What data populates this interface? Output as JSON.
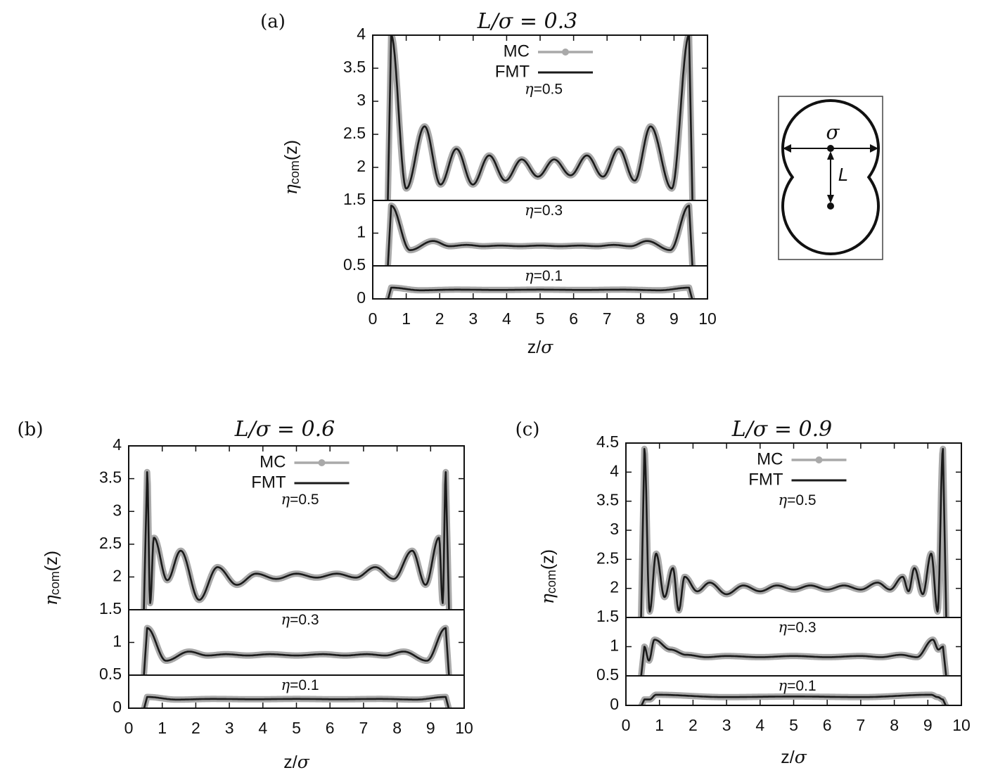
{
  "colors": {
    "mc": "#a9a9a9",
    "fmt": "#1a1a1a",
    "axis": "#111111"
  },
  "schematic": {
    "sigma_label": "σ",
    "length_label": "L"
  },
  "chart_data": [
    {
      "panel_label": "(a)",
      "type": "line",
      "title": "L/σ = 0.3",
      "xlabel": "z/σ",
      "ylabel": "η_com(z)",
      "xlim": [
        0,
        10
      ],
      "xticks": [
        "0",
        "1",
        "2",
        "3",
        "4",
        "5",
        "6",
        "7",
        "8",
        "9",
        "10"
      ],
      "grid": false,
      "legend": {
        "placement": "top-center",
        "entries": [
          "MC",
          "FMT"
        ]
      },
      "subplots": [
        {
          "label": "η=0.5",
          "ylim": [
            1.5,
            4
          ],
          "yticks": [
            "1.5",
            "2",
            "2.5",
            "3",
            "3.5",
            "4"
          ],
          "wall": 0.45,
          "contact": 4.0,
          "min1": 1.68,
          "peaks": [
            [
              1.55,
              2.62
            ],
            [
              2.5,
              2.28
            ],
            [
              3.48,
              2.18
            ],
            [
              4.45,
              2.12
            ],
            [
              5.42,
              2.12
            ],
            [
              6.4,
              2.18
            ],
            [
              7.35,
              2.28
            ],
            [
              8.3,
              2.62
            ]
          ],
          "troughs": [
            1.74,
            1.74,
            1.8,
            1.86,
            1.88,
            1.86,
            1.8,
            1.74,
            1.68
          ]
        },
        {
          "label": "η=0.3",
          "ylim": [
            0.5,
            1.5
          ],
          "yticks": [
            "0.5",
            "1"
          ],
          "wall": 0.45,
          "contact": 1.42,
          "min1": 0.74,
          "peaks": [
            [
              1.8,
              0.88
            ],
            [
              2.8,
              0.82
            ],
            [
              3.8,
              0.81
            ],
            [
              5.0,
              0.81
            ],
            [
              6.2,
              0.81
            ],
            [
              7.2,
              0.82
            ],
            [
              8.2,
              0.88
            ]
          ],
          "troughs": [
            0.8,
            0.8,
            0.8,
            0.8,
            0.8,
            0.8,
            0.8,
            0.74
          ]
        },
        {
          "label": "η=0.1",
          "ylim": [
            0,
            0.5
          ],
          "yticks": [
            "0"
          ],
          "wall": 0.45,
          "contact": 0.17,
          "min1": 0.13,
          "peaks": [
            [
              2.5,
              0.14
            ],
            [
              5.0,
              0.14
            ],
            [
              7.5,
              0.14
            ]
          ],
          "troughs": [
            0.135,
            0.135,
            0.135,
            0.13
          ]
        }
      ]
    },
    {
      "panel_label": "(b)",
      "type": "line",
      "title": "L/σ = 0.6",
      "xlabel": "z/σ",
      "ylabel": "η_com(z)",
      "xlim": [
        0,
        10
      ],
      "xticks": [
        "0",
        "1",
        "2",
        "3",
        "4",
        "5",
        "6",
        "7",
        "8",
        "9",
        "10"
      ],
      "grid": false,
      "legend": {
        "placement": "top-center",
        "entries": [
          "MC",
          "FMT"
        ]
      },
      "subplots": [
        {
          "label": "η=0.5",
          "ylim": [
            1.5,
            4
          ],
          "yticks": [
            "1.5",
            "2",
            "2.5",
            "3",
            "3.5",
            "4"
          ],
          "wall": 0.45,
          "contact": 3.6,
          "min1": 1.6,
          "peaks": [
            [
              0.75,
              2.6
            ],
            [
              1.55,
              2.4
            ],
            [
              2.65,
              2.15
            ],
            [
              3.8,
              2.05
            ],
            [
              5.0,
              2.05
            ],
            [
              6.2,
              2.05
            ],
            [
              7.35,
              2.15
            ],
            [
              8.45,
              2.4
            ],
            [
              9.25,
              2.6
            ]
          ],
          "troughs": [
            1.95,
            1.65,
            1.88,
            1.97,
            1.99,
            1.99,
            1.97,
            1.88,
            1.65,
            1.6
          ]
        },
        {
          "label": "η=0.3",
          "ylim": [
            0.5,
            1.5
          ],
          "yticks": [
            "0.5",
            "1"
          ],
          "wall": 0.45,
          "contact": 1.22,
          "min1": 0.72,
          "peaks": [
            [
              1.8,
              0.86
            ],
            [
              2.9,
              0.82
            ],
            [
              4.2,
              0.82
            ],
            [
              5.8,
              0.82
            ],
            [
              7.1,
              0.82
            ],
            [
              8.2,
              0.86
            ]
          ],
          "troughs": [
            0.8,
            0.8,
            0.8,
            0.8,
            0.8,
            0.8,
            0.72
          ]
        },
        {
          "label": "η=0.1",
          "ylim": [
            0,
            0.5
          ],
          "yticks": [
            "0"
          ],
          "wall": 0.45,
          "contact": 0.17,
          "min1": 0.13,
          "peaks": [
            [
              2.5,
              0.14
            ],
            [
              5.0,
              0.14
            ],
            [
              7.5,
              0.14
            ]
          ],
          "troughs": [
            0.135,
            0.135,
            0.135,
            0.13
          ]
        }
      ]
    },
    {
      "panel_label": "(c)",
      "type": "line",
      "title": "L/σ = 0.9",
      "xlabel": "z/σ",
      "ylabel": "η_com(z)",
      "xlim": [
        0,
        10
      ],
      "xticks": [
        "0",
        "1",
        "2",
        "3",
        "4",
        "5",
        "6",
        "7",
        "8",
        "9",
        "10"
      ],
      "grid": false,
      "legend": {
        "placement": "top-center",
        "entries": [
          "MC",
          "FMT"
        ]
      },
      "subplots": [
        {
          "label": "η=0.5",
          "ylim": [
            1.5,
            4.5
          ],
          "yticks": [
            "1.5",
            "2",
            "2.5",
            "3",
            "3.5",
            "4",
            "4.5"
          ],
          "wall": 0.45,
          "contact": 4.4,
          "min1": 1.6,
          "peaks": [
            [
              0.9,
              2.6
            ],
            [
              1.4,
              2.35
            ],
            [
              1.75,
              2.2
            ],
            [
              2.5,
              2.1
            ],
            [
              3.5,
              2.05
            ],
            [
              4.5,
              2.05
            ],
            [
              5.5,
              2.05
            ],
            [
              6.5,
              2.05
            ],
            [
              7.5,
              2.1
            ],
            [
              8.25,
              2.2
            ],
            [
              8.6,
              2.35
            ],
            [
              9.1,
              2.6
            ]
          ],
          "troughs": [
            1.85,
            1.62,
            1.95,
            1.9,
            1.95,
            1.98,
            1.98,
            1.98,
            1.98,
            1.95,
            1.9,
            1.95,
            1.6
          ]
        },
        {
          "label": "η=0.3",
          "ylim": [
            0.5,
            1.5
          ],
          "yticks": [
            "0.5",
            "1"
          ],
          "wall": 0.45,
          "contact": 1.0,
          "min1": 0.76,
          "peaks": [
            [
              0.85,
              1.12
            ],
            [
              1.8,
              0.86
            ],
            [
              3.0,
              0.84
            ],
            [
              5.0,
              0.84
            ],
            [
              7.0,
              0.84
            ],
            [
              8.2,
              0.86
            ],
            [
              9.15,
              1.12
            ]
          ],
          "troughs": [
            0.95,
            0.82,
            0.82,
            0.82,
            0.82,
            0.82,
            0.76,
            0.95
          ]
        },
        {
          "label": "η=0.1",
          "ylim": [
            0,
            0.5
          ],
          "yticks": [
            "0"
          ],
          "wall": 0.45,
          "contact": 0.1,
          "min1": 0.1,
          "peaks": [
            [
              0.9,
              0.18
            ],
            [
              5.0,
              0.15
            ],
            [
              9.1,
              0.18
            ]
          ],
          "troughs": [
            0.14,
            0.14,
            0.14,
            0.14
          ]
        }
      ]
    }
  ]
}
